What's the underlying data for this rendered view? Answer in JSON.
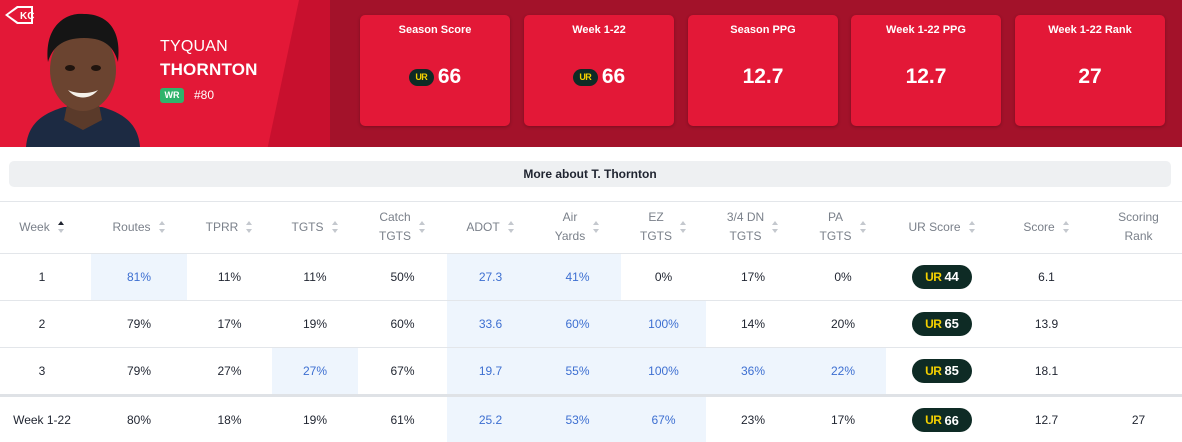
{
  "player": {
    "first_name": "TYQUAN",
    "last_name": "THORNTON",
    "position": "WR",
    "jersey": "#80",
    "team_logo_icon": "chiefs-arrowhead-icon",
    "headshot_icon": "player-headshot-icon"
  },
  "colors": {
    "primary": "#e31837",
    "dark": "#a3122a",
    "position_badge": "#2fb36b",
    "ur_badge_bg": "#0e2b25",
    "ur_badge_text": "#f4d000",
    "highlight_bg": "#eef5fd",
    "highlight_text": "#3d6fd1"
  },
  "stat_cards": [
    {
      "label": "Season Score",
      "value": "66",
      "has_ur_icon": true
    },
    {
      "label": "Week 1-22",
      "value": "66",
      "has_ur_icon": true
    },
    {
      "label": "Season PPG",
      "value": "12.7",
      "has_ur_icon": false
    },
    {
      "label": "Week 1-22 PPG",
      "value": "12.7",
      "has_ur_icon": false
    },
    {
      "label": "Week 1-22 Rank",
      "value": "27",
      "has_ur_icon": false
    }
  ],
  "ur_icon_text": "UR",
  "more_about": "More about T. Thornton",
  "table": {
    "columns": [
      {
        "label": "Week",
        "sort": "asc"
      },
      {
        "label": "Routes",
        "sort": "none"
      },
      {
        "label": "TPRR",
        "sort": "none"
      },
      {
        "label": "TGTS",
        "sort": "none"
      },
      {
        "label": "Catch\nTGTS",
        "sort": "none"
      },
      {
        "label": "ADOT",
        "sort": "none"
      },
      {
        "label": "Air\nYards",
        "sort": "none"
      },
      {
        "label": "EZ\nTGTS",
        "sort": "none"
      },
      {
        "label": "3/4 DN\nTGTS",
        "sort": "none"
      },
      {
        "label": "PA\nTGTS",
        "sort": "none"
      },
      {
        "label": "UR Score",
        "sort": "none"
      },
      {
        "label": "Score",
        "sort": "none"
      },
      {
        "label": "Scoring\nRank",
        "sort": "none"
      }
    ],
    "rows": [
      {
        "cells": [
          "1",
          "81%",
          "11%",
          "11%",
          "50%",
          "27.3",
          "41%",
          "0%",
          "17%",
          "0%",
          "44",
          "6.1",
          ""
        ],
        "highlight": [
          false,
          true,
          false,
          false,
          false,
          true,
          true,
          false,
          false,
          false,
          false,
          false,
          false
        ]
      },
      {
        "cells": [
          "2",
          "79%",
          "17%",
          "19%",
          "60%",
          "33.6",
          "60%",
          "100%",
          "14%",
          "20%",
          "65",
          "13.9",
          ""
        ],
        "highlight": [
          false,
          false,
          false,
          false,
          false,
          true,
          true,
          true,
          false,
          false,
          false,
          false,
          false
        ]
      },
      {
        "cells": [
          "3",
          "79%",
          "27%",
          "27%",
          "67%",
          "19.7",
          "55%",
          "100%",
          "36%",
          "22%",
          "85",
          "18.1",
          ""
        ],
        "highlight": [
          false,
          false,
          false,
          true,
          false,
          true,
          true,
          true,
          true,
          true,
          false,
          false,
          false
        ]
      }
    ],
    "total": {
      "cells": [
        "Week 1-22",
        "80%",
        "18%",
        "19%",
        "61%",
        "25.2",
        "53%",
        "67%",
        "23%",
        "17%",
        "66",
        "12.7",
        "27"
      ],
      "highlight": [
        false,
        false,
        false,
        false,
        false,
        true,
        true,
        true,
        false,
        false,
        false,
        false,
        false
      ]
    }
  }
}
